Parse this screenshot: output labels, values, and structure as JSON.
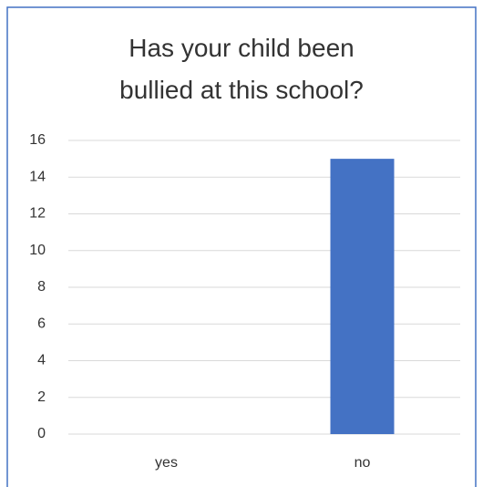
{
  "chart_data": {
    "type": "bar",
    "title": "Has your child been bullied at this school?",
    "categories": [
      "yes",
      "no"
    ],
    "values": [
      0,
      15
    ],
    "color": "#4472c4",
    "ylim": [
      0,
      16
    ],
    "yticks": [
      0,
      2,
      4,
      6,
      8,
      10,
      12,
      14,
      16
    ],
    "grid": true
  }
}
